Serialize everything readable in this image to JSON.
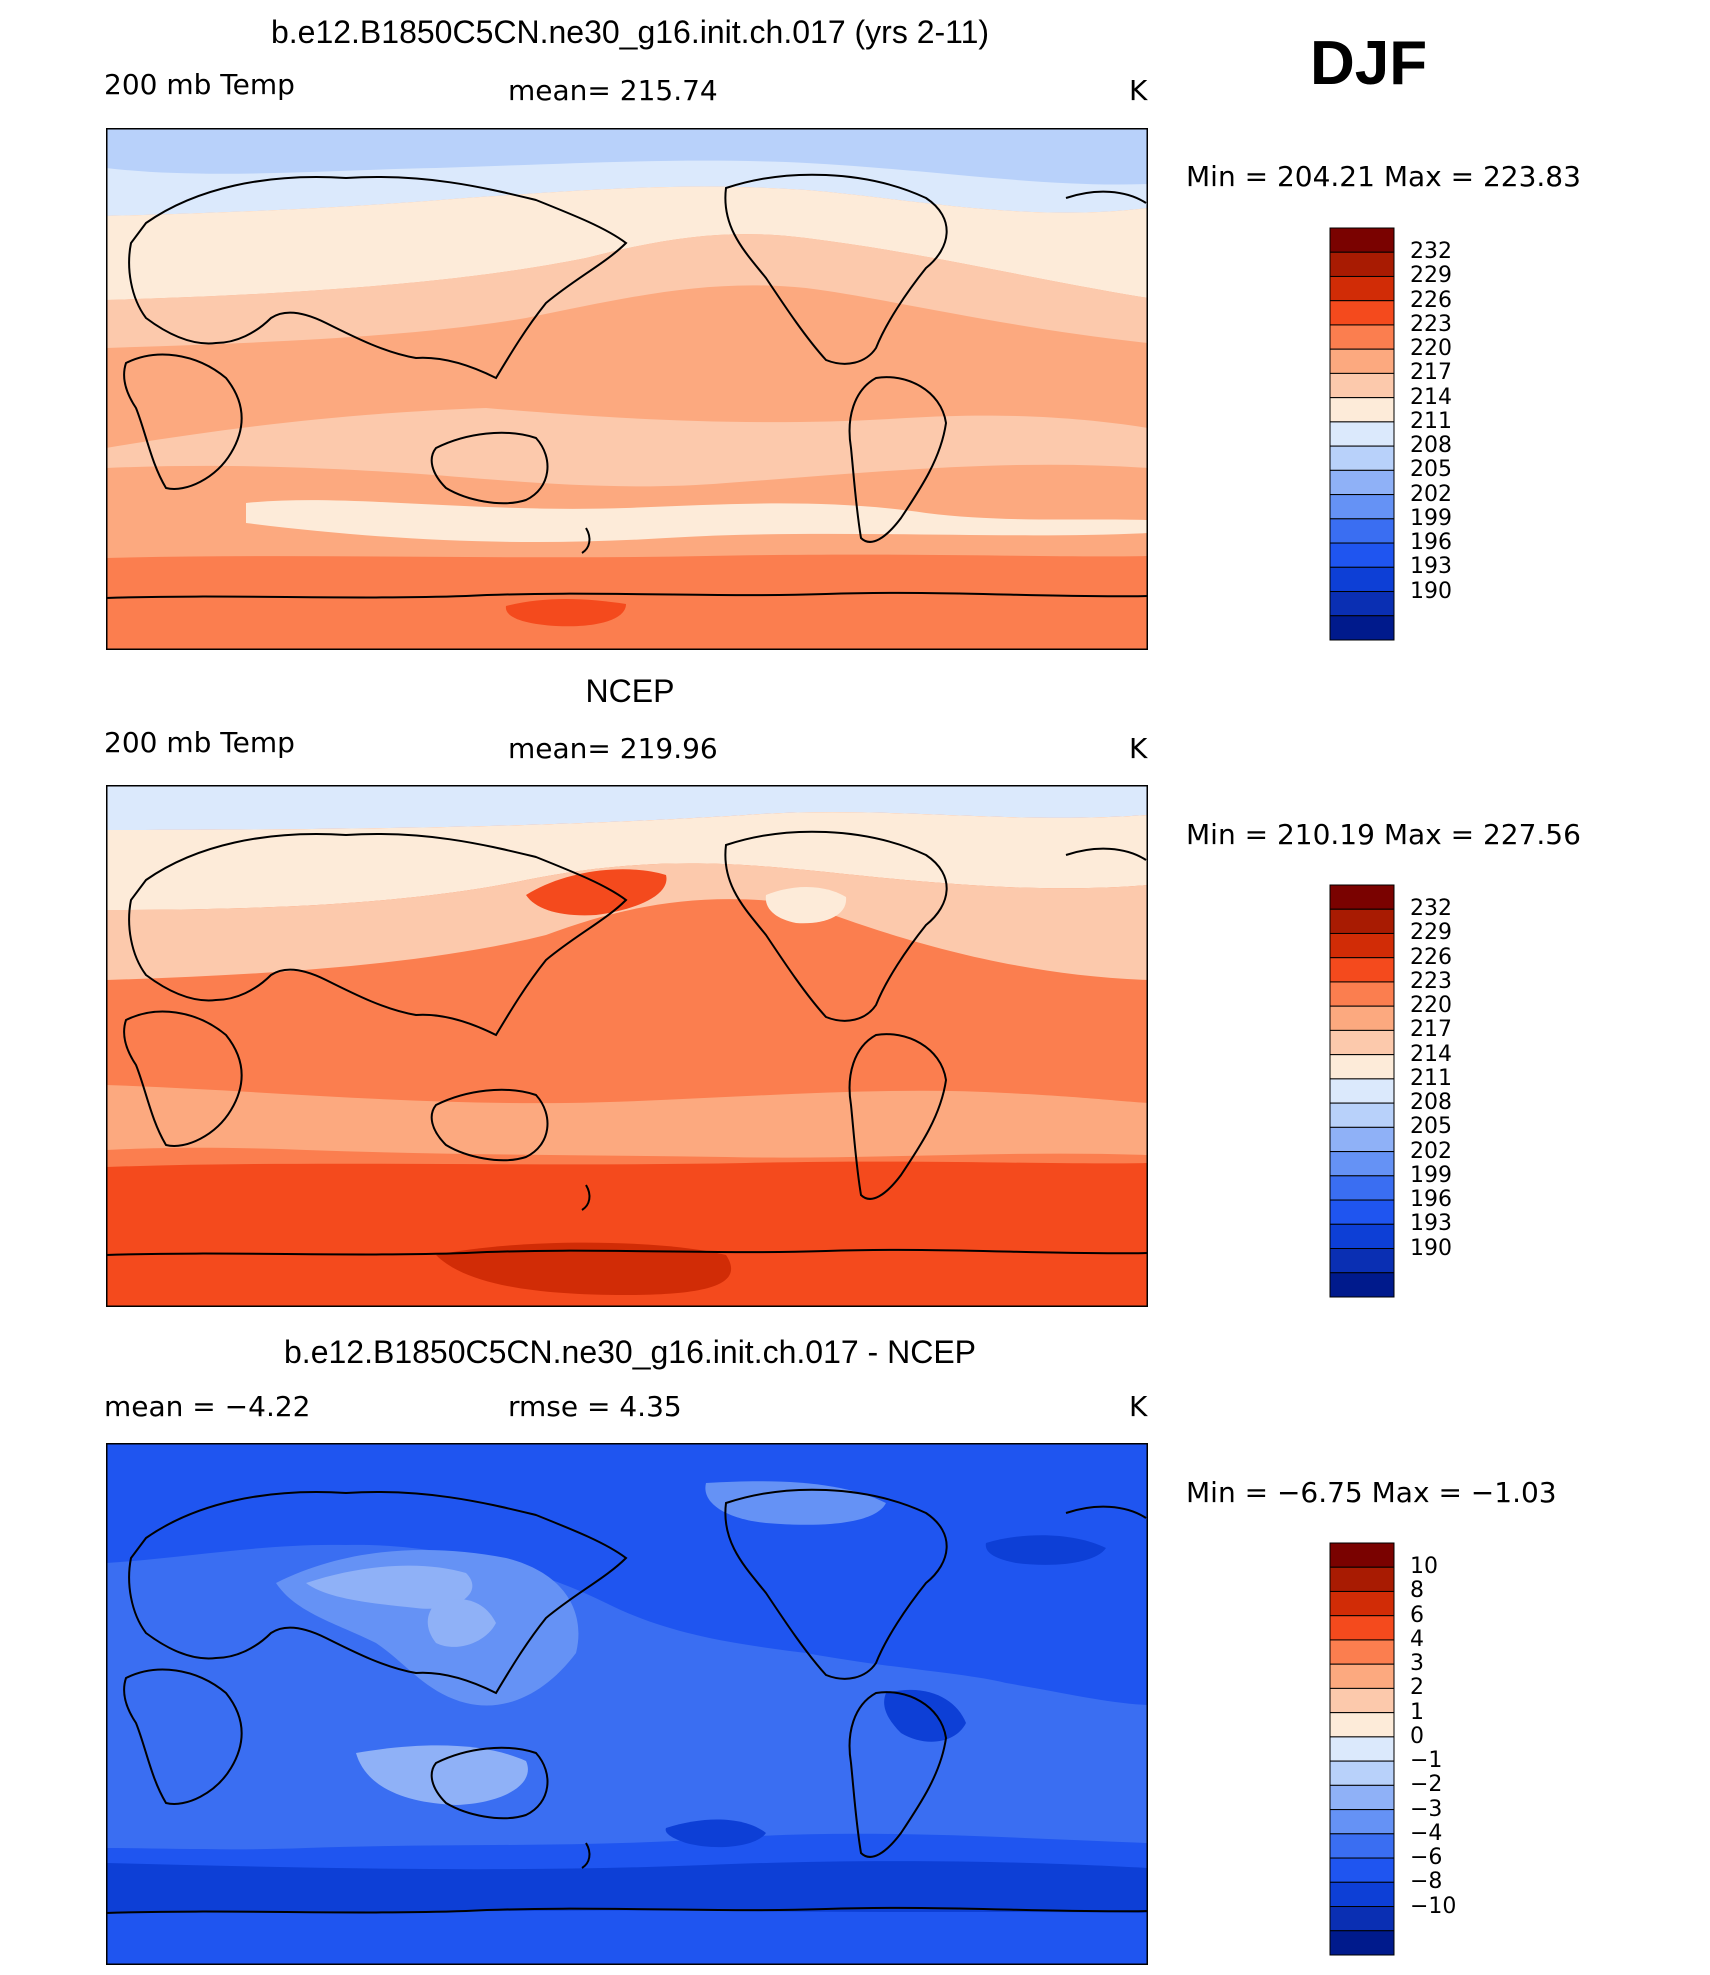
{
  "figure": {
    "season": "DJF",
    "panels": [
      {
        "id": "model",
        "title": "b.e12.B1850C5CN.ne30_g16.init.ch.017 (yrs 2-11)",
        "left_label": "200 mb Temp",
        "center_label": "mean=  215.74",
        "units": "K",
        "minmax": "Min  =  204.21  Max  =  223.83",
        "colorbar": {
          "colors": [
            "#001a8c",
            "#0a2fb3",
            "#0d3fd6",
            "#1f55f0",
            "#3a6ef2",
            "#6592f5",
            "#8fb1f7",
            "#b8d1fa",
            "#dbe9fc",
            "#fdebd9",
            "#fcc9ac",
            "#fca97f",
            "#fb7e4f",
            "#f44a1d",
            "#d12c06",
            "#a81b02",
            "#7a0200"
          ],
          "labels": [
            "190",
            "193",
            "196",
            "199",
            "202",
            "205",
            "208",
            "211",
            "214",
            "217",
            "220",
            "223",
            "226",
            "229",
            "232"
          ]
        }
      },
      {
        "id": "obs",
        "title": "NCEP",
        "left_label": "200 mb Temp",
        "center_label": "mean=  219.96",
        "units": "K",
        "minmax": "Min  =  210.19  Max  =  227.56",
        "colorbar": {
          "colors": [
            "#001a8c",
            "#0a2fb3",
            "#0d3fd6",
            "#1f55f0",
            "#3a6ef2",
            "#6592f5",
            "#8fb1f7",
            "#b8d1fa",
            "#dbe9fc",
            "#fdebd9",
            "#fcc9ac",
            "#fca97f",
            "#fb7e4f",
            "#f44a1d",
            "#d12c06",
            "#a81b02",
            "#7a0200"
          ],
          "labels": [
            "190",
            "193",
            "196",
            "199",
            "202",
            "205",
            "208",
            "211",
            "214",
            "217",
            "220",
            "223",
            "226",
            "229",
            "232"
          ]
        }
      },
      {
        "id": "diff",
        "title": "b.e12.B1850C5CN.ne30_g16.init.ch.017 - NCEP",
        "left_label": "mean  =    −4.22",
        "center_label": "rmse  =     4.35",
        "units": "K",
        "minmax": "Min  =    −6.75  Max  =    −1.03",
        "colorbar": {
          "colors": [
            "#001a8c",
            "#0a2fb3",
            "#0d3fd6",
            "#1f55f0",
            "#3a6ef2",
            "#6592f5",
            "#8fb1f7",
            "#b8d1fa",
            "#dbe9fc",
            "#fdebd9",
            "#fcc9ac",
            "#fca97f",
            "#fb7e4f",
            "#f44a1d",
            "#d12c06",
            "#a81b02",
            "#7a0200"
          ],
          "labels": [
            "−10",
            "−8",
            "−6",
            "−4",
            "−3",
            "−2",
            "−1",
            "0",
            "1",
            "2",
            "3",
            "4",
            "6",
            "8",
            "10"
          ]
        }
      }
    ]
  }
}
